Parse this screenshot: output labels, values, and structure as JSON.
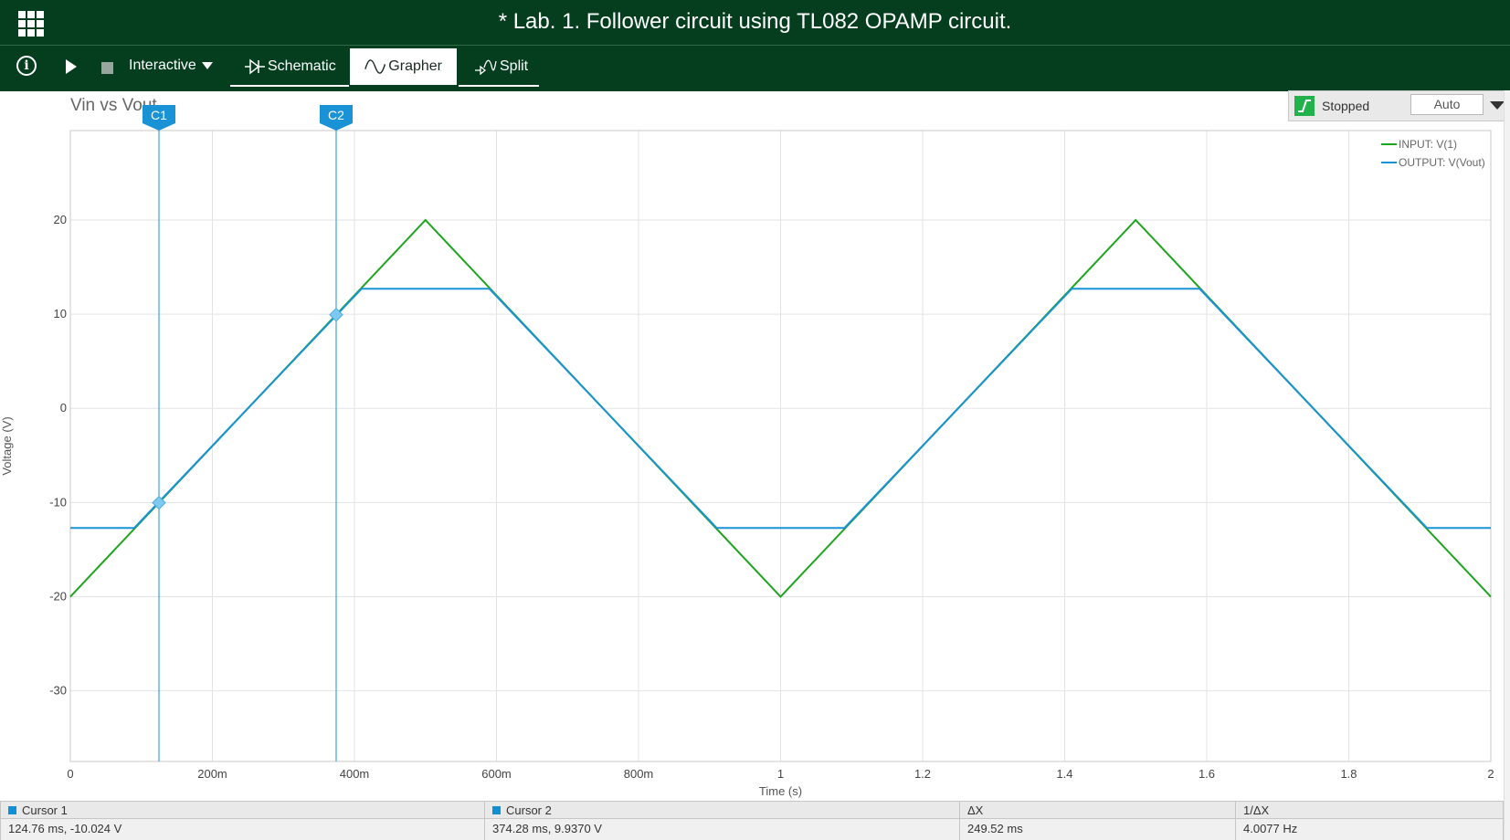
{
  "window": {
    "title": "* Lab. 1. Follower circuit using TL082 OPAMP circuit."
  },
  "toolbar": {
    "info_icon_glyph": "i",
    "mode_label": "Interactive",
    "tabs": [
      {
        "label": "Schematic",
        "icon": "diode-icon"
      },
      {
        "label": "Grapher",
        "icon": "sine-wave-icon"
      },
      {
        "label": "Split",
        "icon": "split-icon"
      }
    ],
    "active_tab": "Grapher"
  },
  "sim_status": {
    "label": "Stopped",
    "mode_value": "Auto"
  },
  "graph": {
    "title": "Vin vs Vout"
  },
  "cursors": {
    "c1": {
      "label": "C1",
      "x": 0.12476,
      "y": -10.024
    },
    "c2": {
      "label": "C2",
      "x": 0.37428,
      "y": 9.937
    }
  },
  "readout": {
    "cursor1_label": "Cursor 1",
    "cursor1_value": "124.76 ms, -10.024 V",
    "cursor2_label": "Cursor 2",
    "cursor2_value": "374.28 ms, 9.9370 V",
    "dx_label": "ΔX",
    "dx_value": "249.52 ms",
    "inv_dx_label": "1/ΔX",
    "inv_dx_value": "4.0077 Hz"
  },
  "chart_data": {
    "type": "line",
    "xlabel": "Time (s)",
    "ylabel": "Voltage (V)",
    "xlim": [
      0,
      2
    ],
    "ylim": [
      -37.5,
      29.5
    ],
    "grid": true,
    "legend_position": "top-right",
    "x_ticks": [
      0,
      0.2,
      0.4,
      0.6,
      0.8,
      1,
      1.2,
      1.4,
      1.6,
      1.8,
      2
    ],
    "x_tick_labels": [
      "0",
      "200m",
      "400m",
      "600m",
      "800m",
      "1",
      "1.2",
      "1.4",
      "1.6",
      "1.8",
      "2"
    ],
    "y_ticks": [
      20,
      10,
      0,
      -10,
      -20,
      -30
    ],
    "y_tick_labels": [
      "20",
      "10",
      "0",
      "-10",
      "-20",
      "-30"
    ],
    "series": [
      {
        "name": "INPUT: V(1)",
        "color": "#1ea51e",
        "x": [
          0,
          0.5,
          1,
          1.5,
          2
        ],
        "y": [
          -20,
          20,
          -20,
          20,
          -20
        ]
      },
      {
        "name": "OUTPUT: V(Vout)",
        "color": "#1a92d6",
        "x": [
          0,
          0.09,
          0.41,
          0.59,
          0.91,
          1.09,
          1.41,
          1.59,
          1.91,
          2
        ],
        "y": [
          -12.7,
          -12.7,
          12.7,
          12.7,
          -12.7,
          -12.7,
          12.7,
          12.7,
          -12.7,
          -12.7
        ]
      }
    ]
  }
}
